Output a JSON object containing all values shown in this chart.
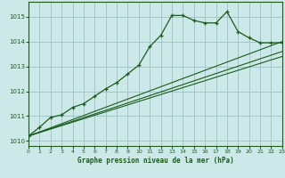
{
  "title": "Graphe pression niveau de la mer (hPa)",
  "bg_color": "#cce8e8",
  "grid_color": "#9ec8c8",
  "line_color": "#1a5c1a",
  "xlim": [
    0,
    23
  ],
  "ylim": [
    1009.8,
    1015.6
  ],
  "xticks": [
    0,
    1,
    2,
    3,
    4,
    5,
    6,
    7,
    8,
    9,
    10,
    11,
    12,
    13,
    14,
    15,
    16,
    17,
    18,
    19,
    20,
    21,
    22,
    23
  ],
  "yticks": [
    1010,
    1011,
    1012,
    1013,
    1014,
    1015
  ],
  "series1_x": [
    0,
    1,
    2,
    3,
    4,
    5,
    6,
    7,
    8,
    9,
    10,
    11,
    12,
    13,
    14,
    15,
    16,
    17,
    18,
    19,
    20,
    21,
    22,
    23
  ],
  "series1_y": [
    1010.2,
    1010.55,
    1010.95,
    1011.05,
    1011.35,
    1011.5,
    1011.8,
    1012.1,
    1012.35,
    1012.7,
    1013.05,
    1013.8,
    1014.25,
    1015.05,
    1015.05,
    1014.85,
    1014.75,
    1014.75,
    1015.2,
    1014.4,
    1014.15,
    1013.95,
    1013.95,
    1013.95
  ],
  "series2_x": [
    0,
    23
  ],
  "series2_y": [
    1010.2,
    1013.4
  ],
  "series3_x": [
    0,
    23
  ],
  "series3_y": [
    1010.2,
    1013.6
  ],
  "series4_x": [
    0,
    23
  ],
  "series4_y": [
    1010.2,
    1014.0
  ]
}
